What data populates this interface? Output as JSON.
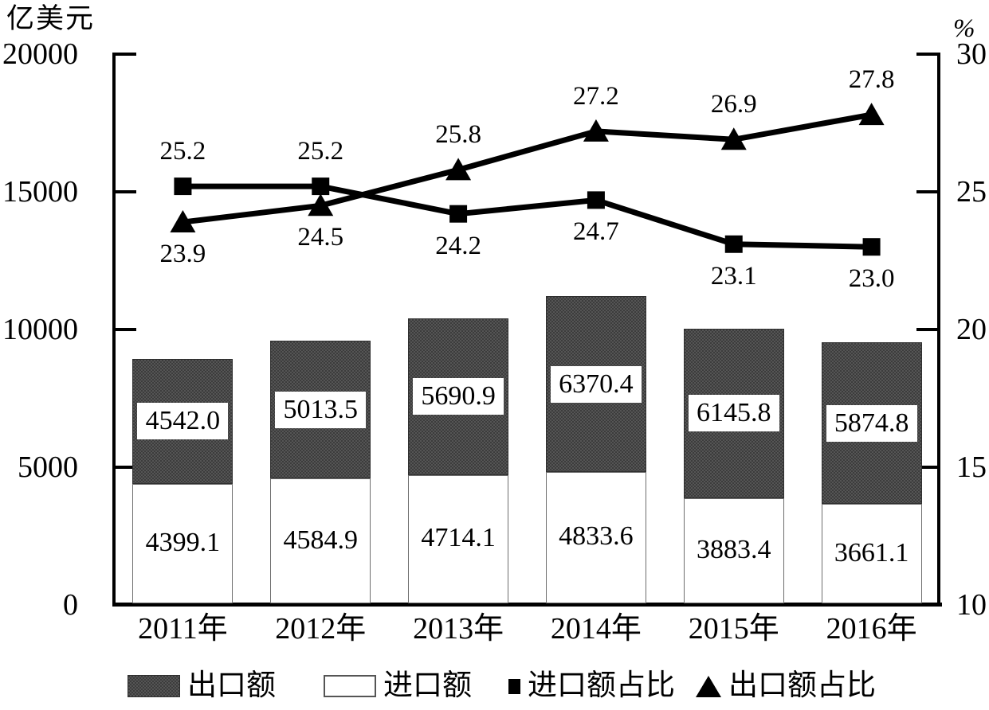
{
  "chart_data": {
    "type": "combo",
    "categories": [
      "2011年",
      "2012年",
      "2013年",
      "2014年",
      "2015年",
      "2016年"
    ],
    "left_axis": {
      "title": "亿美元",
      "ticks": [
        0,
        5000,
        10000,
        15000,
        20000
      ],
      "range": [
        0,
        20000
      ]
    },
    "right_axis": {
      "title": "%",
      "ticks": [
        10,
        15,
        20,
        25,
        30
      ],
      "range": [
        10,
        30
      ]
    },
    "stacking": "stacked",
    "grid": "off",
    "bar_series": [
      {
        "name": "进口额",
        "stack_position": "bottom",
        "fill": "white",
        "values": [
          4399.1,
          4584.9,
          4714.1,
          4833.6,
          3883.4,
          3661.1
        ]
      },
      {
        "name": "出口额",
        "stack_position": "top",
        "fill": "dark",
        "values": [
          4542.0,
          5013.5,
          5690.9,
          6370.4,
          6145.8,
          5874.8
        ]
      }
    ],
    "line_series": [
      {
        "name": "进口额占比",
        "marker": "square",
        "axis": "right",
        "values": [
          25.2,
          25.2,
          24.2,
          24.7,
          23.1,
          23.0
        ],
        "label_side": [
          "above",
          "above",
          "below",
          "below",
          "below",
          "below"
        ]
      },
      {
        "name": "出口额占比",
        "marker": "triangle",
        "axis": "right",
        "values": [
          23.9,
          24.5,
          25.8,
          27.2,
          26.9,
          27.8
        ],
        "label_side": [
          "below",
          "below",
          "above",
          "above",
          "above",
          "above"
        ]
      }
    ],
    "legend": [
      {
        "label": "出口额",
        "swatch": "dark-rect"
      },
      {
        "label": "进口额",
        "swatch": "white-rect"
      },
      {
        "label": "进口额占比",
        "swatch": "black-square"
      },
      {
        "label": "出口额占比",
        "swatch": "black-triangle"
      }
    ]
  },
  "colors": {
    "bar_dark": "#454545",
    "bar_white": "#ffffff",
    "line": "#000000",
    "text": "#000000",
    "background": "#ffffff"
  }
}
